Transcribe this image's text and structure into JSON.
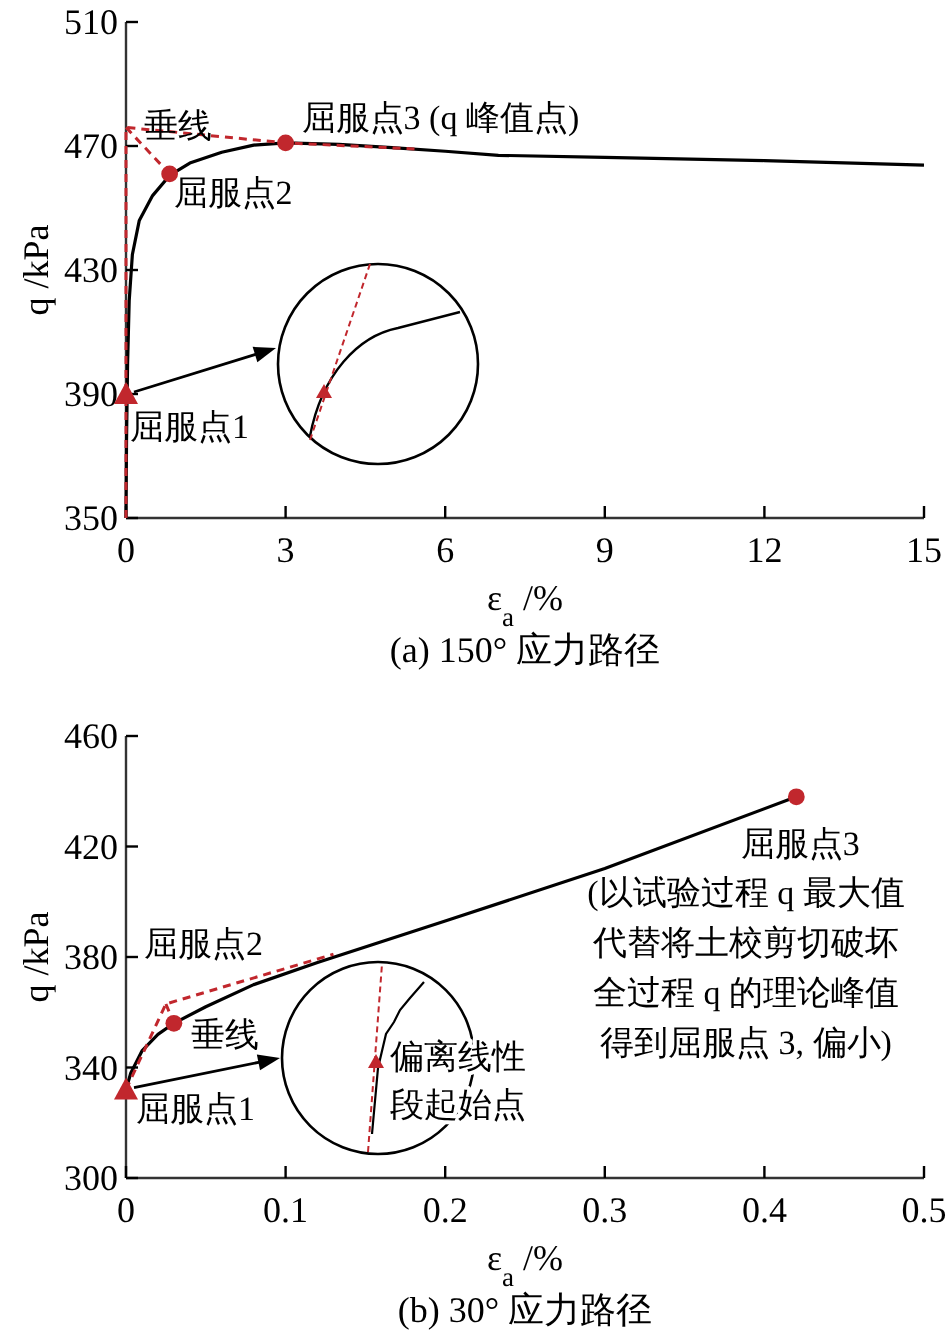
{
  "chart_data": [
    {
      "type": "line",
      "title": "(a) 150° 应力路径",
      "xlabel": "ε$_{a}$ /%",
      "ylabel": "q /kPa",
      "xlim": [
        0,
        15
      ],
      "xticks": [
        0,
        3,
        6,
        9,
        12,
        15
      ],
      "ylim": [
        350,
        510
      ],
      "yticks": [
        350,
        390,
        430,
        470,
        510
      ],
      "grid": false,
      "series": [
        {
          "type": "line",
          "color": "#000000",
          "line_style": "solid",
          "x": [
            0,
            0.01,
            0.03,
            0.06,
            0.12,
            0.25,
            0.5,
            0.82,
            1.2,
            1.8,
            2.4,
            3,
            4,
            5,
            6,
            7,
            9,
            12,
            15
          ],
          "values": [
            350,
            375,
            400,
            420,
            435,
            446,
            454,
            460.5,
            464.5,
            468,
            470.3,
            471,
            470.5,
            469.5,
            468.3,
            467,
            466.3,
            465.3,
            463.8
          ]
        },
        {
          "type": "line",
          "color": "#c1272d",
          "line_style": "dashed",
          "x": [
            0,
            0,
            3,
            5.5
          ],
          "values": [
            350,
            476,
            471,
            469
          ]
        },
        {
          "type": "line",
          "color": "#c1272d",
          "line_style": "dashed",
          "x": [
            0,
            0.82
          ],
          "values": [
            476,
            461
          ]
        },
        {
          "type": "scatter",
          "color": "#c1272d",
          "marker": "triangle",
          "x": [
            0
          ],
          "values": [
            390
          ]
        },
        {
          "type": "scatter",
          "color": "#c1272d",
          "marker": "circle",
          "x": [
            0.82,
            3
          ],
          "values": [
            461,
            471
          ]
        }
      ],
      "annotations": [
        {
          "text": "屈服点1",
          "x": 0,
          "y": 390
        },
        {
          "text": "屈服点2",
          "x": 0.82,
          "y": 461
        },
        {
          "text": "屈服点3 (q 峰值点)",
          "x": 3,
          "y": 471
        },
        {
          "text": "垂线",
          "x": 0.41,
          "y": 468.5
        }
      ]
    },
    {
      "type": "line",
      "title": "(b) 30° 应力路径",
      "xlabel": "ε$_{a}$ /%",
      "ylabel": "q /kPa",
      "xlim": [
        0,
        0.5
      ],
      "xticks": [
        0,
        0.1,
        0.2,
        0.3,
        0.4,
        0.5
      ],
      "ylim": [
        300,
        460
      ],
      "yticks": [
        300,
        340,
        380,
        420,
        460
      ],
      "grid": false,
      "series": [
        {
          "type": "line",
          "color": "#000000",
          "line_style": "solid",
          "x": [
            0,
            0.003,
            0.01,
            0.02,
            0.03,
            0.05,
            0.08,
            0.12,
            0.2,
            0.3,
            0.42
          ],
          "values": [
            332,
            338,
            346,
            352,
            356,
            362,
            370,
            378,
            393,
            412,
            438
          ]
        },
        {
          "type": "line",
          "color": "#c1272d",
          "line_style": "dashed",
          "x": [
            0,
            0.025,
            0.13
          ],
          "values": [
            332,
            363,
            381
          ]
        },
        {
          "type": "line",
          "color": "#c1272d",
          "line_style": "dashed",
          "x": [
            0.025,
            0.03
          ],
          "values": [
            363,
            356
          ]
        },
        {
          "type": "scatter",
          "color": "#c1272d",
          "marker": "triangle",
          "x": [
            0
          ],
          "values": [
            332
          ]
        },
        {
          "type": "scatter",
          "color": "#c1272d",
          "marker": "circle",
          "x": [
            0.03,
            0.42
          ],
          "values": [
            356,
            438
          ]
        }
      ],
      "annotations": [
        {
          "text": "屈服点1",
          "x": 0,
          "y": 332
        },
        {
          "text": "屈服点2",
          "x": 0.03,
          "y": 356
        },
        {
          "text": "垂线",
          "x": 0.028,
          "y": 359.5
        },
        {
          "text": "屈服点3",
          "x": 0.42,
          "y": 438
        },
        "(以试验过程 q 最大值代替将土校剪切破坏全过程 q 的理论峰值得到屈服点 3, 偏小)",
        "偏离线性段起始点"
      ]
    }
  ]
}
